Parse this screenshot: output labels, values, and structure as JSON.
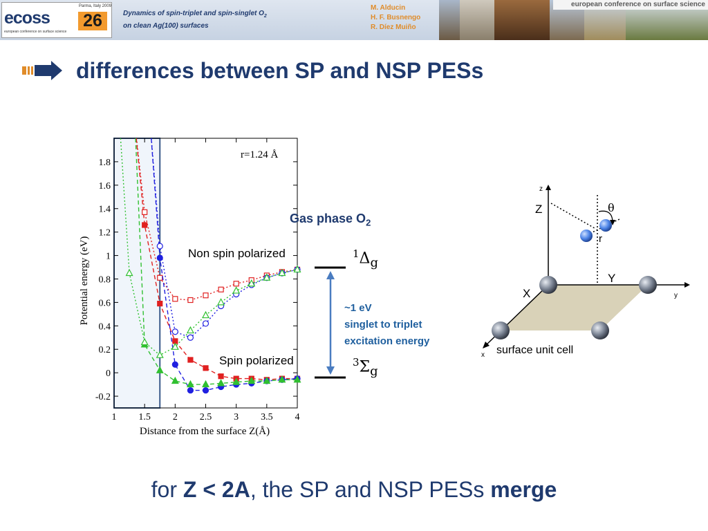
{
  "header": {
    "logo_text": "ecoss",
    "logo_number": "26",
    "logo_place": "Parma, Italy 2009",
    "logo_tagline": "european conference on surface science",
    "paper_title_line1": "Dynamics of spin-triplet and spin-singlet O",
    "paper_title_sub": "2",
    "paper_title_line2": "on clean Ag(100) surfaces",
    "authors": [
      "M. Alducin",
      "H. F. Busnengo",
      "R. Díez Muiño"
    ],
    "conference_banner": "european conference on surface science"
  },
  "slide": {
    "title": "differences between SP and NSP PESs",
    "bottom_pre": "for ",
    "bottom_bold1": "Z < 2A",
    "bottom_mid": ", the SP and NSP PESs ",
    "bottom_bold2": "merge"
  },
  "labels": {
    "non_spin": "Non spin polarized",
    "spin": "Spin polarized",
    "gas_phase": "Gas phase O",
    "gas_phase_sub": "2",
    "state1_sup": "1",
    "state1_sym": "Δ",
    "state1_sub": "g",
    "state3_sup": "3",
    "state3_sym": "Σ",
    "state3_sub": "g",
    "exc_line1": "~1 eV",
    "exc_line2": "singlet to triplet",
    "exc_line3": "excitation energy"
  },
  "diagram": {
    "axis_z": "z",
    "axis_y": "y",
    "axis_x": "x",
    "label_Z": "Z",
    "label_theta": "θ",
    "label_r": "r",
    "label_X": "X",
    "label_Y": "Y",
    "caption": "surface unit cell"
  },
  "chart_data": {
    "type": "scatter",
    "annotation": "r=1.24 Å",
    "xlabel": "Distance from the surface Z(Å)",
    "ylabel": "Potential energy (eV)",
    "xlim": [
      1,
      4
    ],
    "ylim": [
      -0.3,
      2.0
    ],
    "xticks": [
      1,
      1.5,
      2,
      2.5,
      3,
      3.5,
      4
    ],
    "xtick_labels": [
      "1",
      "1.5",
      "2",
      "2.5",
      "3",
      "3.5",
      "4"
    ],
    "yticks": [
      -0.2,
      0,
      0.2,
      0.4,
      0.6,
      0.8,
      1,
      1.2,
      1.4,
      1.6,
      1.8
    ],
    "ytick_labels": [
      "-0.2",
      "0",
      "0.2",
      "0.4",
      "0.6",
      "0.8",
      "1",
      "1.2",
      "1.4",
      "1.6",
      "1.8"
    ],
    "highlight_region_x": [
      1,
      1.75
    ],
    "series": [
      {
        "color": "#e02020",
        "marker": "square",
        "filled": true,
        "line": "dashed",
        "x": [
          1.5,
          1.75,
          2.0,
          2.25,
          2.5,
          2.75,
          3.0,
          3.25,
          3.5,
          3.75,
          4.0
        ],
        "y": [
          1.26,
          0.59,
          0.27,
          0.11,
          0.04,
          -0.03,
          -0.05,
          -0.05,
          -0.06,
          -0.05,
          -0.05
        ]
      },
      {
        "color": "#e02020",
        "marker": "square",
        "filled": false,
        "line": "dotted",
        "x": [
          1.5,
          1.75,
          2.0,
          2.25,
          2.5,
          2.75,
          3.0,
          3.25,
          3.5,
          3.75,
          4.0
        ],
        "y": [
          1.37,
          0.81,
          0.63,
          0.62,
          0.66,
          0.71,
          0.76,
          0.79,
          0.83,
          0.86,
          0.88
        ]
      },
      {
        "color": "#2020e0",
        "marker": "circle",
        "filled": true,
        "line": "dashed",
        "x": [
          1.75,
          2.0,
          2.25,
          2.5,
          2.75,
          3.0,
          3.25,
          3.5,
          3.75,
          4.0
        ],
        "y": [
          0.98,
          0.07,
          -0.15,
          -0.15,
          -0.12,
          -0.1,
          -0.09,
          -0.07,
          -0.06,
          -0.05
        ]
      },
      {
        "color": "#2020e0",
        "marker": "circle",
        "filled": false,
        "line": "dotted",
        "x": [
          1.75,
          2.0,
          2.25,
          2.5,
          2.75,
          3.0,
          3.25,
          3.5,
          3.75,
          4.0
        ],
        "y": [
          1.08,
          0.35,
          0.3,
          0.42,
          0.57,
          0.67,
          0.75,
          0.81,
          0.85,
          0.88
        ]
      },
      {
        "color": "#30c030",
        "marker": "triangle",
        "filled": true,
        "line": "dashed",
        "x": [
          1.5,
          1.75,
          2.0,
          2.25,
          2.5,
          2.75,
          3.0,
          3.25,
          3.5,
          3.75,
          4.0
        ],
        "y": [
          0.24,
          0.02,
          -0.07,
          -0.1,
          -0.1,
          -0.09,
          -0.08,
          -0.07,
          -0.07,
          -0.06,
          -0.06
        ]
      },
      {
        "color": "#30c030",
        "marker": "triangle",
        "filled": false,
        "line": "dotted",
        "x": [
          1.25,
          1.5,
          1.75,
          2.0,
          2.25,
          2.5,
          2.75,
          3.0,
          3.25,
          3.5,
          3.75,
          4.0
        ],
        "y": [
          0.85,
          0.26,
          0.15,
          0.22,
          0.36,
          0.49,
          0.6,
          0.7,
          0.76,
          0.81,
          0.85,
          0.88
        ]
      }
    ]
  }
}
